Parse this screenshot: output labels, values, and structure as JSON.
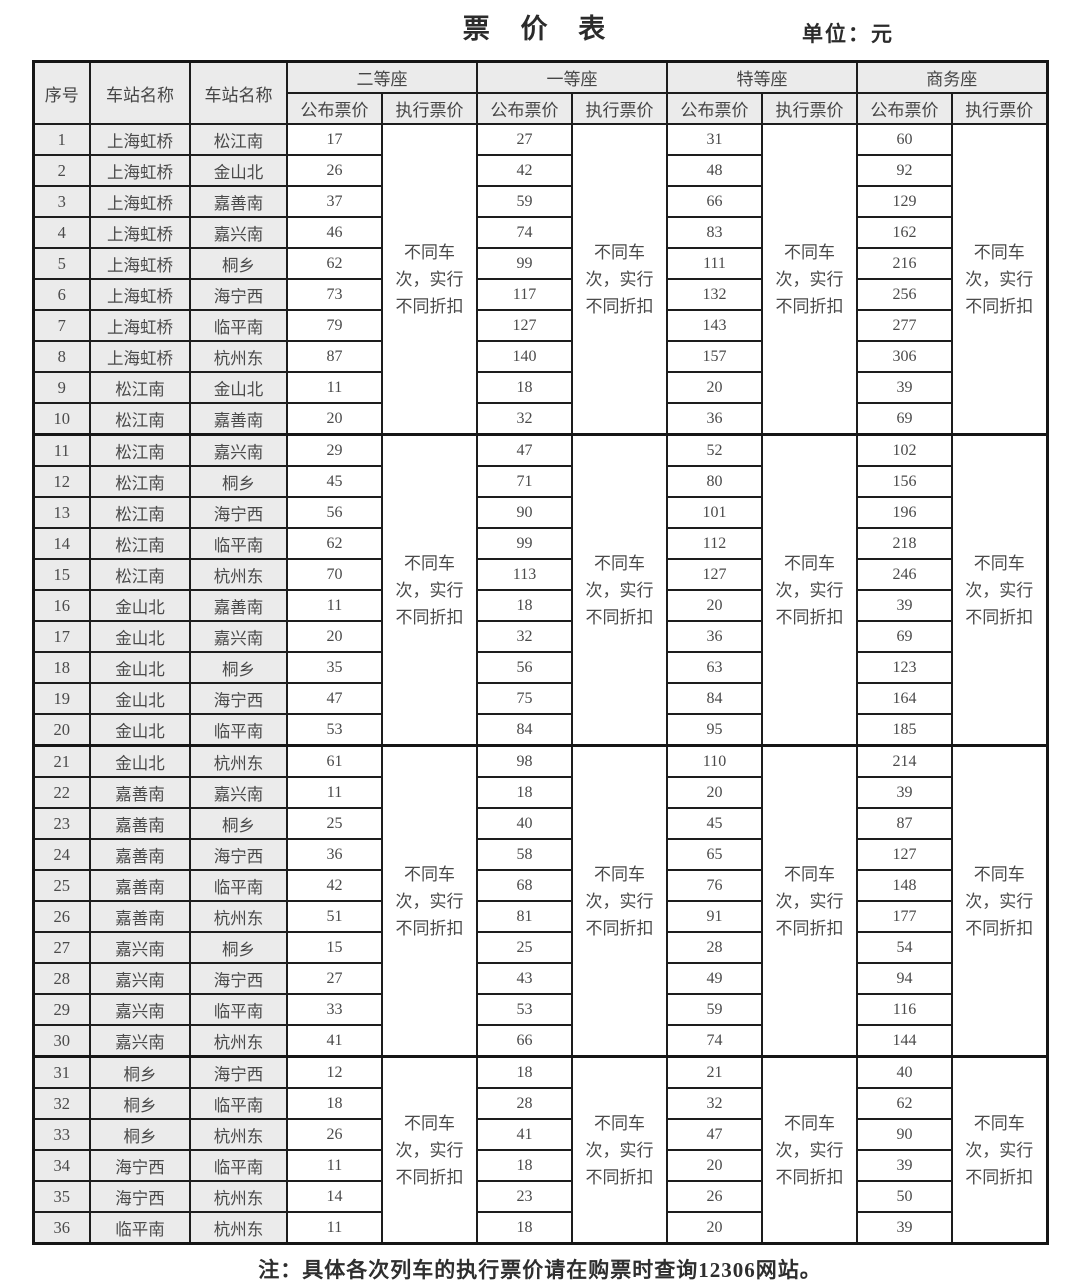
{
  "title": "票 价 表",
  "unit_label": "单位：元",
  "note": "注：具体各次列车的执行票价请在购票时查询12306网站。",
  "colors": {
    "border": "#1d1d1d",
    "outer_border": "#161616",
    "header_bg": "#ebebeb",
    "cell_bg": "#ffffff",
    "text": "#4a4a4a",
    "title_text": "#2b2b2b"
  },
  "table": {
    "headers": {
      "index": "序号",
      "station_from": "车站名称",
      "station_to": "车站名称",
      "seat_classes": [
        "二等座",
        "一等座",
        "特等座",
        "商务座"
      ],
      "published": "公布票价",
      "executed": "执行票价"
    },
    "discount_note": {
      "text": "不同车次，实行不同折扣",
      "lines": [
        "不同车",
        "次，实行",
        "不同折扣"
      ]
    },
    "blocks": [
      {
        "rows": [
          {
            "no": 1,
            "from": "上海虹桥",
            "to": "松江南",
            "fares": [
              17,
              27,
              31,
              60
            ]
          },
          {
            "no": 2,
            "from": "上海虹桥",
            "to": "金山北",
            "fares": [
              26,
              42,
              48,
              92
            ]
          },
          {
            "no": 3,
            "from": "上海虹桥",
            "to": "嘉善南",
            "fares": [
              37,
              59,
              66,
              129
            ]
          },
          {
            "no": 4,
            "from": "上海虹桥",
            "to": "嘉兴南",
            "fares": [
              46,
              74,
              83,
              162
            ]
          },
          {
            "no": 5,
            "from": "上海虹桥",
            "to": "桐乡",
            "fares": [
              62,
              99,
              111,
              216
            ]
          },
          {
            "no": 6,
            "from": "上海虹桥",
            "to": "海宁西",
            "fares": [
              73,
              117,
              132,
              256
            ]
          },
          {
            "no": 7,
            "from": "上海虹桥",
            "to": "临平南",
            "fares": [
              79,
              127,
              143,
              277
            ]
          },
          {
            "no": 8,
            "from": "上海虹桥",
            "to": "杭州东",
            "fares": [
              87,
              140,
              157,
              306
            ]
          },
          {
            "no": 9,
            "from": "松江南",
            "to": "金山北",
            "fares": [
              11,
              18,
              20,
              39
            ]
          },
          {
            "no": 10,
            "from": "松江南",
            "to": "嘉善南",
            "fares": [
              20,
              32,
              36,
              69
            ]
          }
        ]
      },
      {
        "rows": [
          {
            "no": 11,
            "from": "松江南",
            "to": "嘉兴南",
            "fares": [
              29,
              47,
              52,
              102
            ]
          },
          {
            "no": 12,
            "from": "松江南",
            "to": "桐乡",
            "fares": [
              45,
              71,
              80,
              156
            ]
          },
          {
            "no": 13,
            "from": "松江南",
            "to": "海宁西",
            "fares": [
              56,
              90,
              101,
              196
            ]
          },
          {
            "no": 14,
            "from": "松江南",
            "to": "临平南",
            "fares": [
              62,
              99,
              112,
              218
            ]
          },
          {
            "no": 15,
            "from": "松江南",
            "to": "杭州东",
            "fares": [
              70,
              113,
              127,
              246
            ]
          },
          {
            "no": 16,
            "from": "金山北",
            "to": "嘉善南",
            "fares": [
              11,
              18,
              20,
              39
            ]
          },
          {
            "no": 17,
            "from": "金山北",
            "to": "嘉兴南",
            "fares": [
              20,
              32,
              36,
              69
            ]
          },
          {
            "no": 18,
            "from": "金山北",
            "to": "桐乡",
            "fares": [
              35,
              56,
              63,
              123
            ]
          },
          {
            "no": 19,
            "from": "金山北",
            "to": "海宁西",
            "fares": [
              47,
              75,
              84,
              164
            ]
          },
          {
            "no": 20,
            "from": "金山北",
            "to": "临平南",
            "fares": [
              53,
              84,
              95,
              185
            ]
          }
        ]
      },
      {
        "rows": [
          {
            "no": 21,
            "from": "金山北",
            "to": "杭州东",
            "fares": [
              61,
              98,
              110,
              214
            ]
          },
          {
            "no": 22,
            "from": "嘉善南",
            "to": "嘉兴南",
            "fares": [
              11,
              18,
              20,
              39
            ]
          },
          {
            "no": 23,
            "from": "嘉善南",
            "to": "桐乡",
            "fares": [
              25,
              40,
              45,
              87
            ]
          },
          {
            "no": 24,
            "from": "嘉善南",
            "to": "海宁西",
            "fares": [
              36,
              58,
              65,
              127
            ]
          },
          {
            "no": 25,
            "from": "嘉善南",
            "to": "临平南",
            "fares": [
              42,
              68,
              76,
              148
            ]
          },
          {
            "no": 26,
            "from": "嘉善南",
            "to": "杭州东",
            "fares": [
              51,
              81,
              91,
              177
            ]
          },
          {
            "no": 27,
            "from": "嘉兴南",
            "to": "桐乡",
            "fares": [
              15,
              25,
              28,
              54
            ]
          },
          {
            "no": 28,
            "from": "嘉兴南",
            "to": "海宁西",
            "fares": [
              27,
              43,
              49,
              94
            ]
          },
          {
            "no": 29,
            "from": "嘉兴南",
            "to": "临平南",
            "fares": [
              33,
              53,
              59,
              116
            ]
          },
          {
            "no": 30,
            "from": "嘉兴南",
            "to": "杭州东",
            "fares": [
              41,
              66,
              74,
              144
            ]
          }
        ]
      },
      {
        "rows": [
          {
            "no": 31,
            "from": "桐乡",
            "to": "海宁西",
            "fares": [
              12,
              18,
              21,
              40
            ]
          },
          {
            "no": 32,
            "from": "桐乡",
            "to": "临平南",
            "fares": [
              18,
              28,
              32,
              62
            ]
          },
          {
            "no": 33,
            "from": "桐乡",
            "to": "杭州东",
            "fares": [
              26,
              41,
              47,
              90
            ]
          },
          {
            "no": 34,
            "from": "海宁西",
            "to": "临平南",
            "fares": [
              11,
              18,
              20,
              39
            ]
          },
          {
            "no": 35,
            "from": "海宁西",
            "to": "杭州东",
            "fares": [
              14,
              23,
              26,
              50
            ]
          },
          {
            "no": 36,
            "from": "临平南",
            "to": "杭州东",
            "fares": [
              11,
              18,
              20,
              39
            ]
          }
        ]
      }
    ]
  }
}
